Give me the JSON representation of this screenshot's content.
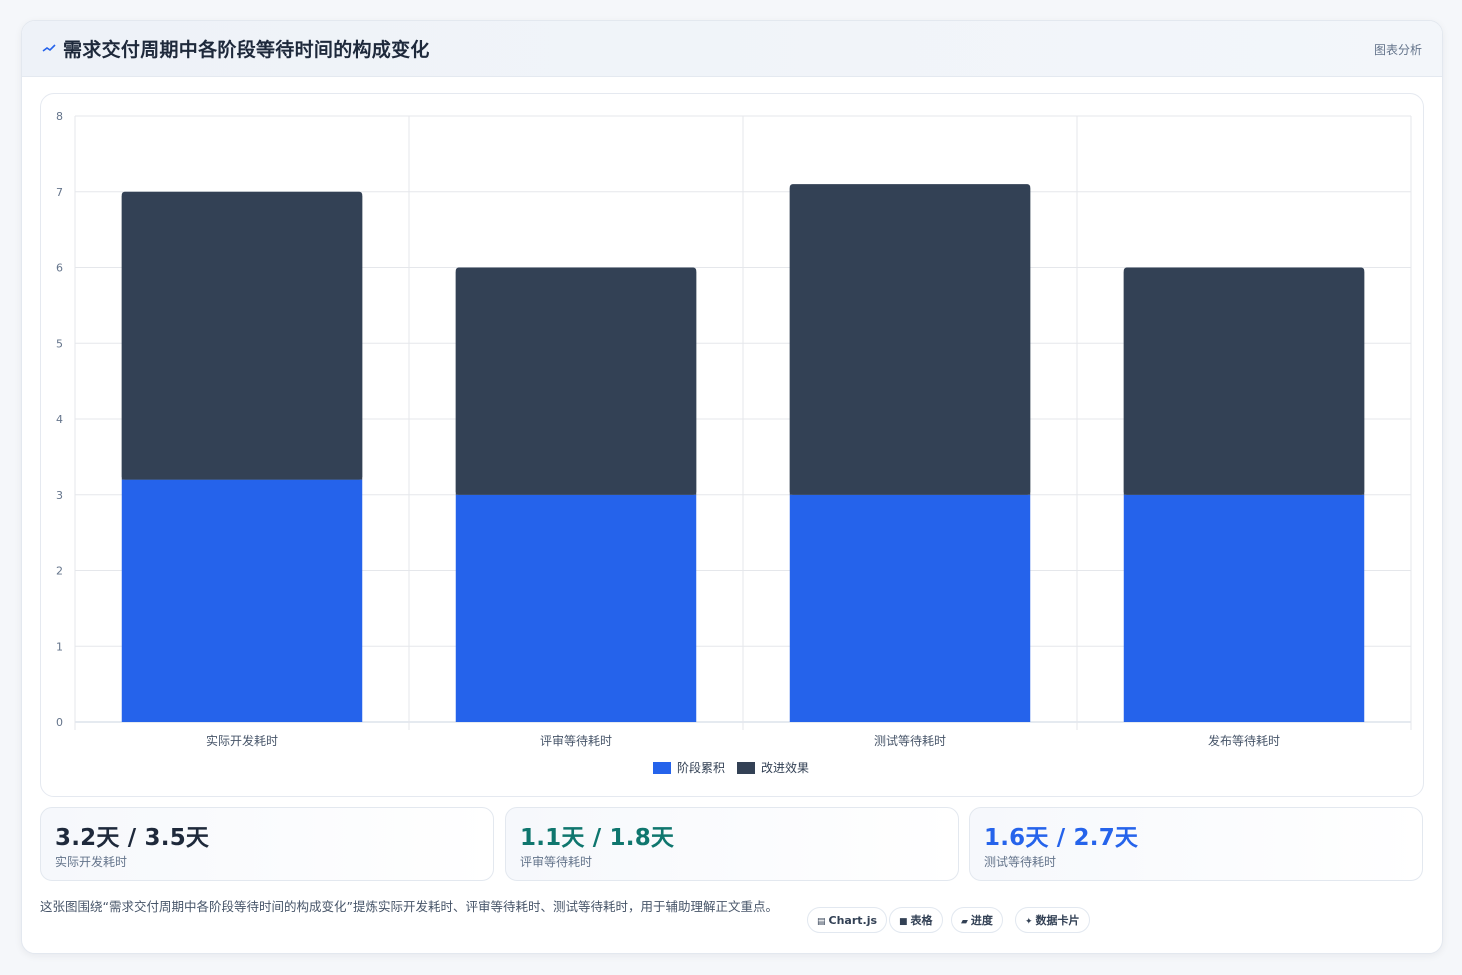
{
  "header": {
    "title": "需求交付周期中各阶段等待时间的构成变化",
    "tag": "图表分析"
  },
  "colors": {
    "series_1": "#2563eb",
    "series_2": "#334155",
    "stat_1": "#1e293b",
    "stat_2": "#0f766e",
    "stat_3": "#2563eb"
  },
  "chart_data": {
    "type": "bar",
    "stacked": true,
    "categories": [
      "实际开发耗时",
      "评审等待耗时",
      "测试等待耗时",
      "发布等待耗时"
    ],
    "series": [
      {
        "name": "阶段累积",
        "values": [
          3.2,
          3.0,
          3.0,
          3.0
        ],
        "color": "#2563eb"
      },
      {
        "name": "改进效果",
        "values": [
          3.8,
          3.0,
          4.1,
          3.0
        ],
        "color": "#334155"
      }
    ],
    "ylim": [
      0,
      8
    ],
    "yticks": [
      0,
      1,
      2,
      3,
      4,
      5,
      6,
      7,
      8
    ],
    "grid": true,
    "legend_position": "bottom"
  },
  "stats": [
    {
      "value": "3.2天 / 3.5天",
      "label": "实际开发耗时"
    },
    {
      "value": "1.1天 / 1.8天",
      "label": "评审等待耗时"
    },
    {
      "value": "1.6天 / 2.7天",
      "label": "测试等待耗时"
    }
  ],
  "note": "这张图围绕“需求交付周期中各阶段等待时间的构成变化”提炼实际开发耗时、评审等待耗时、测试等待耗时，用于辅助理解正文重点。",
  "chips": [
    {
      "icon": "chart-icon",
      "glyph": "▤",
      "label": "Chart.js"
    },
    {
      "icon": "table-icon",
      "glyph": "■",
      "label": "表格"
    },
    {
      "icon": "progress-icon",
      "glyph": "▰",
      "label": "进度"
    },
    {
      "icon": "sparkle-icon",
      "glyph": "✦",
      "label": "数据卡片"
    }
  ]
}
